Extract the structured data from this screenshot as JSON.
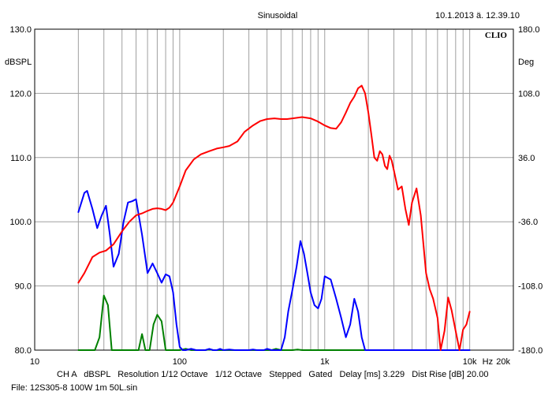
{
  "header": {
    "title": "Sinusoidal",
    "timestamp": "10.1.2013 ä. 12.39.10",
    "brand": "CLIO"
  },
  "footer": {
    "settings": "CH A   dBSPL   Resolution 1/12 Octave   1/12 Octave   Stepped   Gated   Delay [ms] 3.229   Dist Rise [dB] 20.00",
    "file": "File: 12S305-8 100W 1m 50L.sin"
  },
  "chart_data": {
    "type": "line",
    "x_scale": "log",
    "xlim": [
      10,
      20000
    ],
    "x_ticks": [
      {
        "value": 10,
        "label": "10"
      },
      {
        "value": 100,
        "label": "100"
      },
      {
        "value": 1000,
        "label": "1k"
      },
      {
        "value": 10000,
        "label": "10k"
      },
      {
        "value": 20000,
        "label": "20k"
      }
    ],
    "x_unit": "Hz",
    "ylabel": "dBSPL",
    "ylim": [
      80,
      130
    ],
    "y_ticks": [
      "130.0",
      "120.0",
      "110.0",
      "100.0",
      "90.0",
      "80.0"
    ],
    "y2label": "Deg",
    "y2lim": [
      -180,
      180
    ],
    "y2_ticks": [
      "180.0",
      "108.0",
      "36.0",
      "-36.0",
      "-108.0",
      "-180.0"
    ],
    "grid": true,
    "colors": {
      "red": "#ff0000",
      "blue": "#0000ff",
      "green": "#008000",
      "grid": "#a0a0a0"
    },
    "series": [
      {
        "color": "#ff0000",
        "x": [
          20,
          22,
          25,
          28,
          31,
          35,
          40,
          45,
          50,
          55,
          60,
          65,
          70,
          75,
          80,
          85,
          90,
          100,
          110,
          125,
          140,
          160,
          180,
          200,
          220,
          250,
          280,
          320,
          360,
          400,
          450,
          500,
          550,
          600,
          700,
          800,
          900,
          1000,
          1100,
          1200,
          1300,
          1400,
          1500,
          1600,
          1700,
          1800,
          1900,
          2000,
          2100,
          2200,
          2300,
          2400,
          2500,
          2600,
          2700,
          2800,
          2900,
          3000,
          3200,
          3400,
          3600,
          3800,
          4000,
          4300,
          4600,
          5000,
          5300,
          5600,
          6000,
          6300,
          6700,
          7100,
          7500,
          8000,
          8500,
          9000,
          9500,
          10000
        ],
        "y": [
          90.5,
          92,
          94.5,
          95.2,
          95.5,
          96.5,
          98.5,
          100,
          101,
          101.3,
          101.7,
          102,
          102.1,
          102,
          101.8,
          102.2,
          103,
          105.5,
          108,
          109.7,
          110.5,
          111,
          111.4,
          111.6,
          111.8,
          112.5,
          114,
          115,
          115.7,
          116,
          116.1,
          116,
          116,
          116.1,
          116.3,
          116.1,
          115.6,
          115,
          114.6,
          114.5,
          115.5,
          117,
          118.5,
          119.5,
          120.8,
          121.2,
          120,
          117,
          113.5,
          110,
          109.5,
          111,
          110.5,
          108.7,
          108.2,
          110.3,
          109.5,
          108,
          105,
          105.5,
          102,
          99.5,
          103,
          105.2,
          101,
          92,
          89.5,
          88,
          85,
          80,
          83,
          88.2,
          86.2,
          83,
          80,
          83.2,
          84,
          86
        ]
      },
      {
        "color": "#0000ff",
        "x": [
          20,
          22,
          23,
          25,
          27,
          29,
          31,
          33,
          35,
          38,
          41,
          44,
          47,
          50,
          55,
          60,
          65,
          70,
          75,
          80,
          85,
          90,
          95,
          100,
          105,
          110,
          120,
          130,
          140,
          150,
          160,
          170,
          180,
          190,
          200,
          220,
          240,
          260,
          280,
          300,
          320,
          340,
          360,
          380,
          400,
          430,
          460,
          500,
          530,
          560,
          600,
          640,
          680,
          720,
          760,
          800,
          850,
          900,
          950,
          1000,
          1100,
          1200,
          1300,
          1400,
          1500,
          1600,
          1700,
          1800,
          1900,
          2000,
          2300,
          3000,
          5000,
          10000
        ],
        "y": [
          101.5,
          104.5,
          104.8,
          102,
          99,
          101,
          102.5,
          98,
          93,
          95,
          100,
          103,
          103.2,
          103.5,
          98,
          92,
          93.5,
          92,
          90.5,
          91.8,
          91.5,
          89,
          84,
          80.5,
          80,
          80,
          80.2,
          80,
          80,
          80,
          80.2,
          80,
          80,
          80.2,
          80,
          80.1,
          80,
          80,
          80,
          80,
          80.1,
          80,
          80,
          80,
          80.2,
          80,
          80,
          80,
          82,
          86,
          89.5,
          93,
          97,
          95,
          92,
          89,
          87,
          86.5,
          88,
          91.5,
          91,
          88,
          85,
          82,
          84,
          88,
          86,
          82,
          80,
          80,
          80,
          80,
          80,
          80
        ]
      },
      {
        "color": "#008000",
        "x": [
          20,
          22,
          24,
          26,
          28,
          30,
          32,
          34,
          36,
          38,
          40,
          42,
          44,
          46,
          48,
          50,
          52,
          55,
          58,
          62,
          66,
          70,
          75,
          80,
          85,
          90,
          95,
          100,
          110,
          120,
          130,
          140,
          150,
          160,
          170,
          180,
          190,
          200,
          220,
          240,
          260,
          280,
          300,
          320,
          340,
          360,
          380,
          400,
          430,
          460,
          500,
          530,
          560,
          600,
          650,
          700,
          750,
          800,
          850,
          900,
          1000,
          1100,
          1200,
          1300,
          1400,
          1500,
          1600,
          1700,
          1800,
          1900,
          2000,
          2100,
          2200,
          2300,
          2400,
          2500,
          2600,
          2700,
          2800,
          2900,
          3000,
          3100,
          3200,
          3300,
          3400,
          3600,
          4000,
          5000,
          10000
        ],
        "y": [
          80,
          80,
          80,
          80,
          82,
          88.5,
          87,
          80,
          80,
          80,
          80,
          80,
          80,
          80,
          80,
          80,
          80,
          82.5,
          80,
          80,
          84,
          85.5,
          84.5,
          80,
          80,
          80,
          80,
          80,
          80.2,
          80,
          80,
          80,
          80,
          80.1,
          80,
          80,
          80,
          80,
          80,
          80,
          80,
          80,
          80,
          80,
          80,
          80,
          80,
          80,
          80,
          80.2,
          80,
          80,
          80,
          80,
          80.1,
          80,
          80,
          80,
          80,
          80,
          80,
          80,
          80,
          80,
          80,
          80,
          80,
          80,
          80,
          80,
          80,
          80,
          80,
          80,
          80,
          80,
          80,
          80,
          80,
          80,
          80,
          80,
          80,
          80,
          80,
          80,
          80,
          80,
          80
        ]
      }
    ]
  }
}
